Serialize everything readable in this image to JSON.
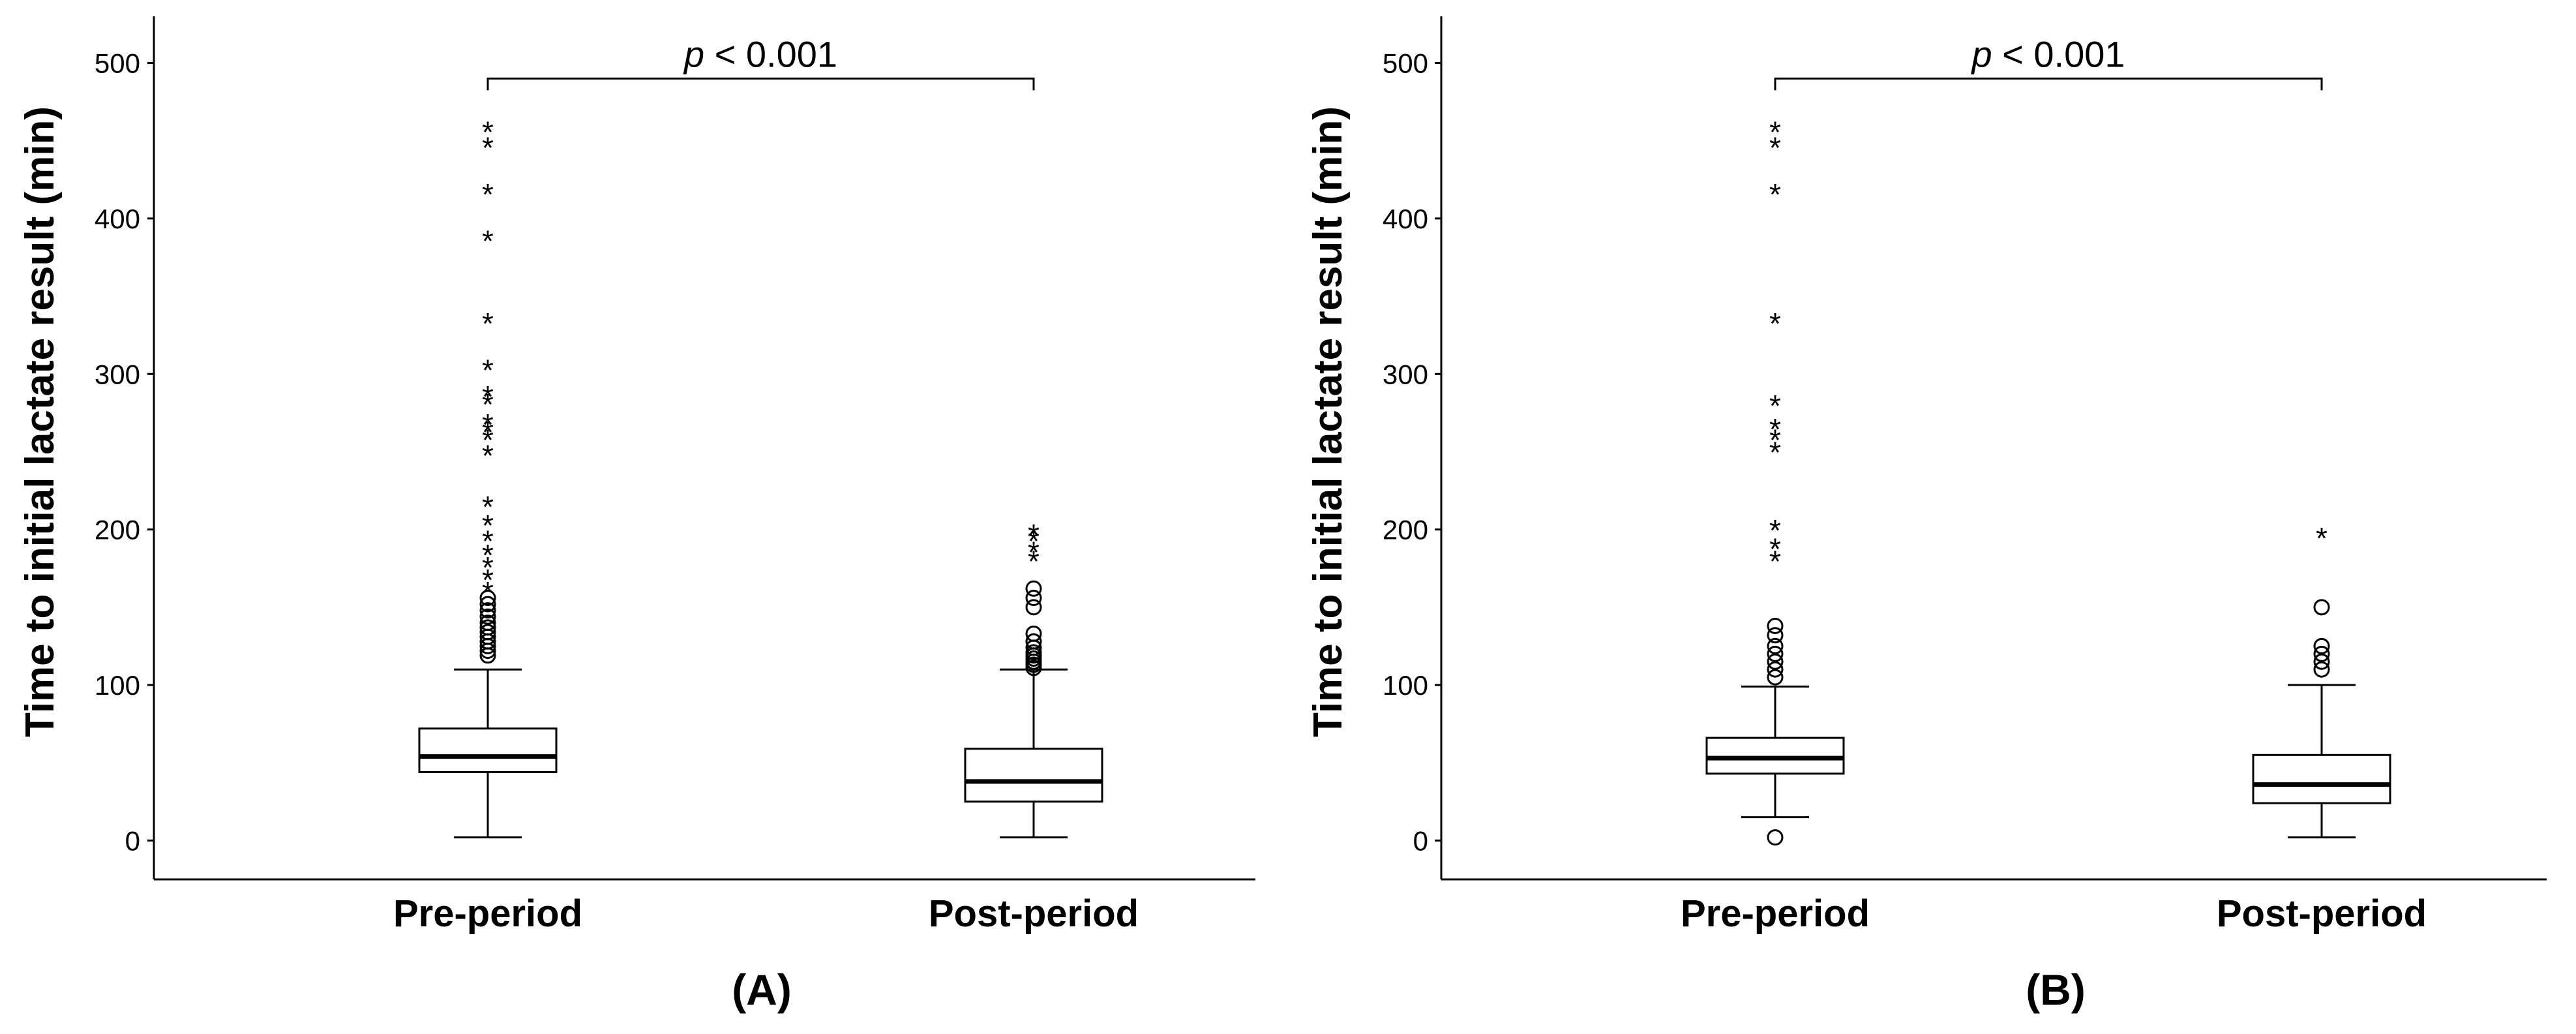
{
  "chart_data": [
    {
      "type": "box",
      "panel_label": "(A)",
      "ylabel": "Time to initial lactate result (min)",
      "ylim": [
        -25,
        530
      ],
      "yticks": [
        0,
        100,
        200,
        300,
        400,
        500
      ],
      "categories": [
        "Pre-period",
        "Post-period"
      ],
      "annotation": {
        "italic": "p",
        "text": " < 0.001"
      },
      "boxes": [
        {
          "category": "Pre-period",
          "whisker_low": 2,
          "q1": 44,
          "median": 54,
          "q3": 72,
          "whisker_high": 110,
          "outliers": [
            119,
            122,
            125,
            128,
            131,
            134,
            137,
            140,
            144,
            148,
            152,
            156
          ],
          "extremes": [
            162,
            170,
            178,
            186,
            195,
            205,
            217,
            250,
            260,
            265,
            270,
            283,
            288,
            305,
            335,
            388,
            418,
            448,
            458
          ]
        },
        {
          "category": "Post-period",
          "whisker_low": 2,
          "q1": 25,
          "median": 38,
          "q3": 59,
          "whisker_high": 110,
          "outliers": [
            111,
            113,
            115,
            117,
            119,
            121,
            124,
            128,
            133,
            150,
            156,
            162
          ],
          "extremes": [
            182,
            188,
            195,
            199
          ]
        }
      ]
    },
    {
      "type": "box",
      "panel_label": "(B)",
      "ylabel": "Time to initial lactate result (min)",
      "ylim": [
        -25,
        530
      ],
      "yticks": [
        0,
        100,
        200,
        300,
        400,
        500
      ],
      "categories": [
        "Pre-period",
        "Post-period"
      ],
      "annotation": {
        "italic": "p",
        "text": " < 0.001"
      },
      "boxes": [
        {
          "category": "Pre-period",
          "whisker_low": 15,
          "q1": 43,
          "median": 53,
          "q3": 66,
          "whisker_high": 99,
          "outliers": [
            2,
            105,
            110,
            115,
            120,
            125,
            132,
            138
          ],
          "extremes": [
            182,
            190,
            202,
            252,
            260,
            267,
            282,
            335,
            418,
            448,
            458
          ]
        },
        {
          "category": "Post-period",
          "whisker_low": 2,
          "q1": 24,
          "median": 36,
          "q3": 55,
          "whisker_high": 100,
          "outliers": [
            110,
            115,
            120,
            125,
            150
          ],
          "extremes": [
            197
          ]
        }
      ]
    }
  ]
}
